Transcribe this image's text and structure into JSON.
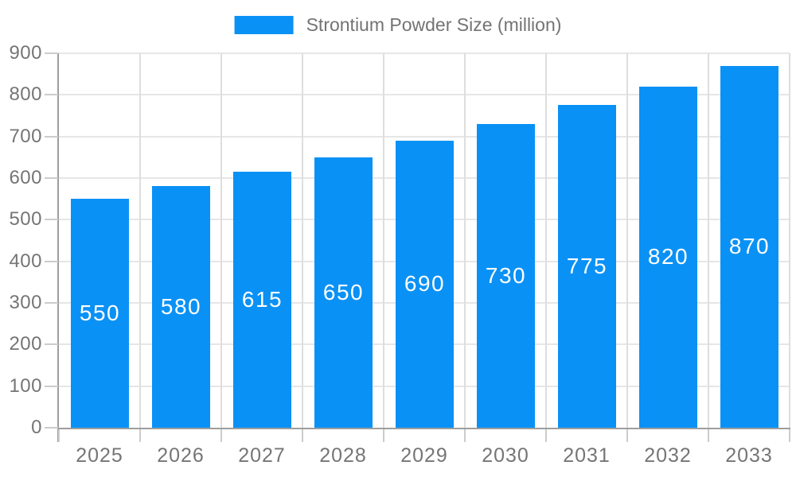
{
  "legend": {
    "label": "Strontium Powder Size (million)"
  },
  "chart_data": {
    "type": "bar",
    "title": "",
    "categories": [
      "2025",
      "2026",
      "2027",
      "2028",
      "2029",
      "2030",
      "2031",
      "2032",
      "2033"
    ],
    "series": [
      {
        "name": "Strontium Powder Size (million)",
        "values": [
          550,
          580,
          615,
          650,
          690,
          730,
          775,
          820,
          870
        ]
      }
    ],
    "xlabel": "",
    "ylabel": "",
    "ylim": [
      0,
      900
    ],
    "ytick_step": 100,
    "yticks": [
      0,
      100,
      200,
      300,
      400,
      500,
      600,
      700,
      800,
      900
    ],
    "grid": true,
    "legend_position": "top-center",
    "value_labels": "inside-middle",
    "bar_width_fraction": 0.72
  },
  "colors": {
    "bar": "#0a91f5",
    "grid_horizontal": "#e6e6e6",
    "grid_vertical": "#dedede",
    "axis": "#9e9e9e",
    "tick": "#cccccc",
    "label_text": "#757575",
    "bar_label_text": "#ffffff",
    "background": "#ffffff"
  }
}
